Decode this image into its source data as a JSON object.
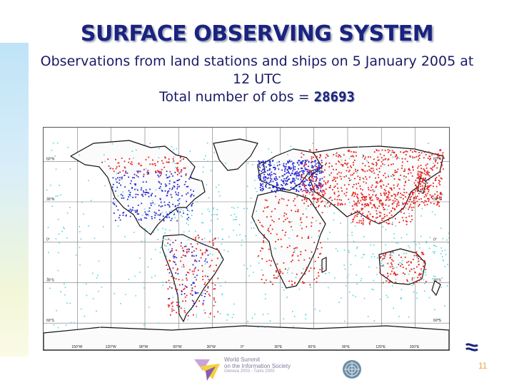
{
  "slide": {
    "title": "SURFACE OBSERVING SYSTEM",
    "subtitle_line1": "Observations from land stations and ships on 5 January 2005 at",
    "subtitle_line2": "12 UTC",
    "total_label": "Total number of obs =",
    "total_value": "28693",
    "page_number": "11"
  },
  "map": {
    "lat_labels": [
      "60°N",
      "30°N",
      "0°",
      "30°S",
      "60°S"
    ],
    "lon_labels": [
      "150°W",
      "120°W",
      "90°W",
      "60°W",
      "30°W",
      "0°",
      "30°E",
      "60°E",
      "90°E",
      "120°E",
      "150°E"
    ],
    "colors": {
      "land_station": "#e8201e",
      "land_station_dense": "#2a2ad0",
      "ship": "#52d6e0",
      "coast": "#111111"
    }
  },
  "footer": {
    "wsis_line1": "World Summit",
    "wsis_line2": "on the Information Society",
    "wsis_line3": "Geneva 2003 - Tunis 2005"
  },
  "icons": {
    "footer_left": "wsis-logo-icon",
    "footer_mid": "un-emblem-icon",
    "footer_right": "ecmwf-logo-icon"
  }
}
